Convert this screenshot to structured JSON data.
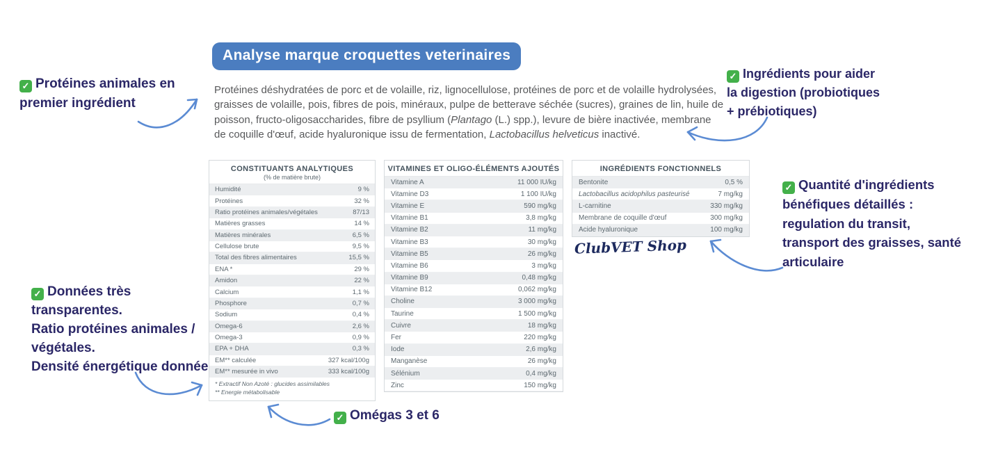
{
  "title_banner": {
    "label": "Analyse marque croquettes veterinaires"
  },
  "colors": {
    "banner_blue": "#4b7dc0",
    "annotation_navy": "#2b2767",
    "arrow_blue": "#5b8bd3",
    "check_green": "#43b04a",
    "table_stripe_gray": "#eceef0"
  },
  "icons": {
    "check": "✓"
  },
  "ingredients_paragraph": {
    "segments": [
      {
        "t": "Protéines déshydratées de porc et de volaille, riz, lignocellulose, protéines de porc et de volaille hydrolysées, graisses de volaille, pois, fibres de pois, minéraux, pulpe de betterave séchée (sucres), graines de lin, huile de poisson, fructo-oligosaccharides, fibre de psyllium (",
        "i": false
      },
      {
        "t": "Plantago",
        "i": true
      },
      {
        "t": " (L.) spp.), levure de bière inactivée, membrane de coquille d'œuf, acide hyaluronique issu de fermentation, ",
        "i": false
      },
      {
        "t": "Lactobacillus helveticus",
        "i": true
      },
      {
        "t": " inactivé.",
        "i": false
      }
    ]
  },
  "tables": [
    {
      "title": "CONSTITUANTS ANALYTIQUES",
      "subtitle": "(% de matière brute)",
      "rows": [
        {
          "label": "Humidité",
          "value": "9 %"
        },
        {
          "label": "Protéines",
          "value": "32 %"
        },
        {
          "label": "Ratio protéines animales/végétales",
          "value": "87/13"
        },
        {
          "label": "Matières grasses",
          "value": "14 %"
        },
        {
          "label": "Matières minérales",
          "value": "6,5 %"
        },
        {
          "label": "Cellulose brute",
          "value": "9,5 %"
        },
        {
          "label": "Total des fibres alimentaires",
          "value": "15,5 %"
        },
        {
          "label": "ENA *",
          "value": "29 %"
        },
        {
          "label": "Amidon",
          "value": "22 %"
        },
        {
          "label": "Calcium",
          "value": "1,1 %"
        },
        {
          "label": "Phosphore",
          "value": "0,7 %"
        },
        {
          "label": "Sodium",
          "value": "0,4 %"
        },
        {
          "label": "Omega-6",
          "value": "2,6 %"
        },
        {
          "label": "Omega-3",
          "value": "0,9 %"
        },
        {
          "label": "EPA + DHA",
          "value": "0,3 %"
        },
        {
          "label": "EM** calculée",
          "value": "327 kcal/100g"
        },
        {
          "label": "EM** mesurée in vivo",
          "value": "333 kcal/100g"
        }
      ],
      "footnotes": [
        "* Extractif Non Azoté : glucides assimilables",
        "** Energie métabolisable"
      ]
    },
    {
      "title": "VITAMINES ET OLIGO-ÉLÉMENTS AJOUTÉS",
      "rows": [
        {
          "label": "Vitamine A",
          "value": "11 000 IU/kg"
        },
        {
          "label": "Vitamine D3",
          "value": "1 100 IU/kg"
        },
        {
          "label": "Vitamine E",
          "value": "590 mg/kg"
        },
        {
          "label": "Vitamine B1",
          "value": "3,8 mg/kg"
        },
        {
          "label": "Vitamine B2",
          "value": "11 mg/kg"
        },
        {
          "label": "Vitamine B3",
          "value": "30 mg/kg"
        },
        {
          "label": "Vitamine B5",
          "value": "26 mg/kg"
        },
        {
          "label": "Vitamine B6",
          "value": "3 mg/kg"
        },
        {
          "label": "Vitamine B9",
          "value": "0,48 mg/kg"
        },
        {
          "label": "Vitamine B12",
          "value": "0,062 mg/kg"
        },
        {
          "label": "Choline",
          "value": "3 000 mg/kg"
        },
        {
          "label": "Taurine",
          "value": "1 500 mg/kg"
        },
        {
          "label": "Cuivre",
          "value": "18 mg/kg"
        },
        {
          "label": "Fer",
          "value": "220 mg/kg"
        },
        {
          "label": "Iode",
          "value": "2,6 mg/kg"
        },
        {
          "label": "Manganèse",
          "value": "26 mg/kg"
        },
        {
          "label": "Sélénium",
          "value": "0,4 mg/kg"
        },
        {
          "label": "Zinc",
          "value": "150 mg/kg"
        }
      ]
    },
    {
      "title": "INGRÉDIENTS FONCTIONNELS",
      "rows": [
        {
          "label": "Bentonite",
          "value": "0,5 %"
        },
        {
          "label": "Lactobacillus acidophilus pasteurisé",
          "value": "7 mg/kg",
          "em": true
        },
        {
          "label": "L-carnitine",
          "value": "330 mg/kg"
        },
        {
          "label": "Membrane de coquille d'œuf",
          "value": "300 mg/kg"
        },
        {
          "label": "Acide hyaluronique",
          "value": "100 mg/kg"
        }
      ]
    }
  ],
  "signature": {
    "text": "ClubVET Shop"
  },
  "annotations": [
    {
      "text": "Protéines animales en\npremier ingrédient"
    },
    {
      "text": "Ingrédients pour aider\nla digestion (probiotiques\n+ prébiotiques)"
    },
    {
      "text": "Quantité d'ingrédients\nbénéfiques détaillés :\nregulation du transit,\ntransport des graisses, santé\narticulaire"
    },
    {
      "text": "Données très\ntransparentes.\nRatio protéines animales /\nvégétales.\nDensité énergétique donnée"
    },
    {
      "text": "Omégas 3 et 6"
    }
  ]
}
